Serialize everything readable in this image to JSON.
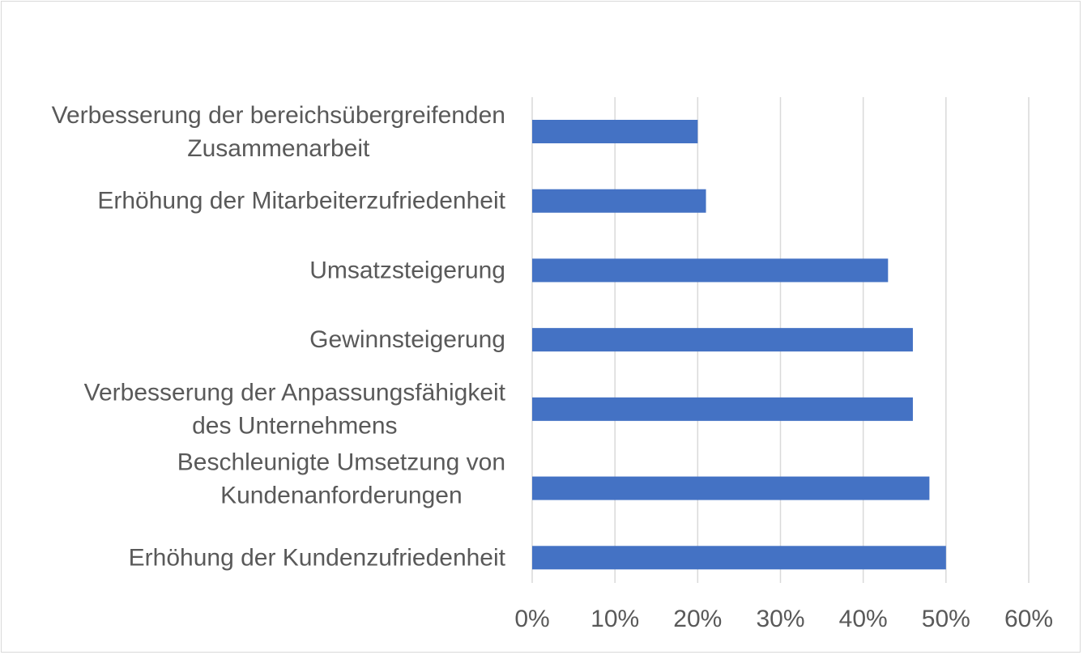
{
  "chart_data": {
    "type": "bar",
    "orientation": "horizontal",
    "title": "",
    "xlabel": "",
    "ylabel": "",
    "categories": [
      [
        "Verbesserung der bereichsübergreifenden",
        "Zusammenarbeit"
      ],
      [
        "Erhöhung der Mitarbeiterzufriedenheit"
      ],
      [
        "Umsatzsteigerung"
      ],
      [
        "Gewinnsteigerung"
      ],
      [
        "Verbesserung der Anpassungsfähigkeit",
        "des Unternehmens"
      ],
      [
        "Beschleunigte Umsetzung von",
        "Kundenanforderungen"
      ],
      [
        "Erhöhung der Kundenzufriedenheit"
      ]
    ],
    "values": [
      20,
      21,
      43,
      46,
      46,
      48,
      50
    ],
    "xlim": [
      0,
      60
    ],
    "xticks": [
      0,
      10,
      20,
      30,
      40,
      50,
      60
    ],
    "tick_labels": [
      "0%",
      "10%",
      "20%",
      "30%",
      "40%",
      "50%",
      "60%"
    ],
    "grid": true,
    "legend": "none",
    "bar_color": "#4472C4"
  }
}
